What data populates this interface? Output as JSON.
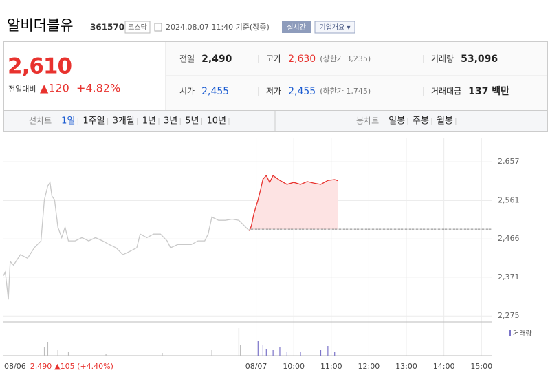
{
  "header": {
    "name": "알비더블유",
    "code": "361570",
    "market": "코스닥",
    "timestamp": "2024.08.07 11:40 기준(장중)",
    "realtime": "실시간",
    "company": "기업개요 ▾"
  },
  "quote": {
    "price": "2,610",
    "change_label": "전일대비",
    "change": "▲120",
    "change_pct": "+4.82%",
    "stats": [
      {
        "label": "전일",
        "value": "2,490"
      },
      {
        "label": "고가",
        "value": "2,630",
        "note": "(상한가 3,235)"
      },
      {
        "label": "거래량",
        "value": "53,096"
      },
      {
        "label": "시가",
        "value": "2,455"
      },
      {
        "label": "저가",
        "value": "2,455",
        "note": "(하한가 1,745)"
      },
      {
        "label": "거래대금",
        "value": "137 백만"
      }
    ]
  },
  "tabs": {
    "line_label": "선차트",
    "line": [
      "1일",
      "1주일",
      "3개월",
      "1년",
      "3년",
      "5년",
      "10년"
    ],
    "candle_label": "봉차트",
    "candle": [
      "일봉",
      "주봉",
      "월봉"
    ]
  },
  "chart_data": {
    "type": "line",
    "xlim": [
      2.27,
      15.27
    ],
    "ylim": [
      2260,
      2717
    ],
    "xticks": [
      {
        "value": 9,
        "label": "08/07"
      },
      {
        "value": 10,
        "label": "10:00"
      },
      {
        "value": 11,
        "label": "11:00"
      },
      {
        "value": 12,
        "label": "12:00"
      },
      {
        "value": 13,
        "label": "13:00"
      },
      {
        "value": 14,
        "label": "14:00"
      },
      {
        "value": 15,
        "label": "15:00"
      }
    ],
    "yticks": [
      {
        "value": 2275,
        "label": "2,275"
      },
      {
        "value": 2371,
        "label": "2,371"
      },
      {
        "value": 2466,
        "label": "2,466"
      },
      {
        "value": 2561,
        "label": "2,561"
      },
      {
        "value": 2657,
        "label": "2,657"
      }
    ],
    "grid": true,
    "baseline": 2490,
    "series": [
      {
        "color": "#c9c9c9",
        "x": [
          2.27,
          2.32,
          2.4,
          2.45,
          2.54,
          2.72,
          2.91,
          3.09,
          3.27,
          3.36,
          3.45,
          3.51,
          3.56,
          3.63,
          3.72,
          3.82,
          3.91,
          4.0,
          4.18,
          4.36,
          4.54,
          4.72,
          4.91,
          5.09,
          5.27,
          5.45,
          5.63,
          5.82,
          5.91,
          6.09,
          6.27,
          6.45,
          6.63,
          6.72,
          6.91,
          7.09,
          7.27,
          7.45,
          7.63,
          7.72,
          7.82,
          8.0,
          8.18,
          8.36,
          8.54,
          8.72,
          8.82
        ],
        "values": [
          2375,
          2384,
          2316,
          2410,
          2401,
          2427,
          2418,
          2444,
          2461,
          2563,
          2597,
          2606,
          2572,
          2563,
          2495,
          2469,
          2495,
          2461,
          2461,
          2469,
          2461,
          2469,
          2461,
          2452,
          2444,
          2427,
          2435,
          2444,
          2478,
          2469,
          2478,
          2478,
          2461,
          2444,
          2452,
          2452,
          2452,
          2461,
          2461,
          2478,
          2520,
          2512,
          2512,
          2515,
          2512,
          2495,
          2486
        ]
      },
      {
        "color": "#e8322e",
        "fill": "#fde3e3",
        "x": [
          8.82,
          8.87,
          8.94,
          9.05,
          9.12,
          9.18,
          9.27,
          9.36,
          9.45,
          9.63,
          9.82,
          10.0,
          10.18,
          10.36,
          10.54,
          10.72,
          10.91,
          11.09,
          11.18
        ],
        "values": [
          2486,
          2498,
          2529,
          2563,
          2589,
          2614,
          2623,
          2606,
          2623,
          2611,
          2601,
          2606,
          2601,
          2608,
          2604,
          2601,
          2611,
          2613,
          2610
        ]
      }
    ],
    "annotation": {
      "date": "08/06",
      "close": "2,490",
      "change": "▲105 (+4.40%)"
    },
    "volume": {
      "label": "거래량",
      "ylim": [
        0,
        40000
      ],
      "series": [
        {
          "color": "#bdbdbd",
          "x": [
            3.36,
            3.45,
            3.72,
            4.0,
            5.0,
            6.5,
            7.82,
            8.54,
            8.58
          ],
          "values": [
            12000,
            20000,
            8000,
            6000,
            3000,
            4000,
            8000,
            40000,
            15000
          ]
        },
        {
          "color": "#7b74c9",
          "x": [
            9.05,
            9.18,
            9.27,
            9.45,
            9.63,
            9.82,
            10.18,
            10.72,
            10.91,
            11.09
          ],
          "values": [
            22000,
            15000,
            10000,
            8000,
            12000,
            6000,
            5000,
            8000,
            14000,
            6000
          ]
        }
      ]
    }
  }
}
